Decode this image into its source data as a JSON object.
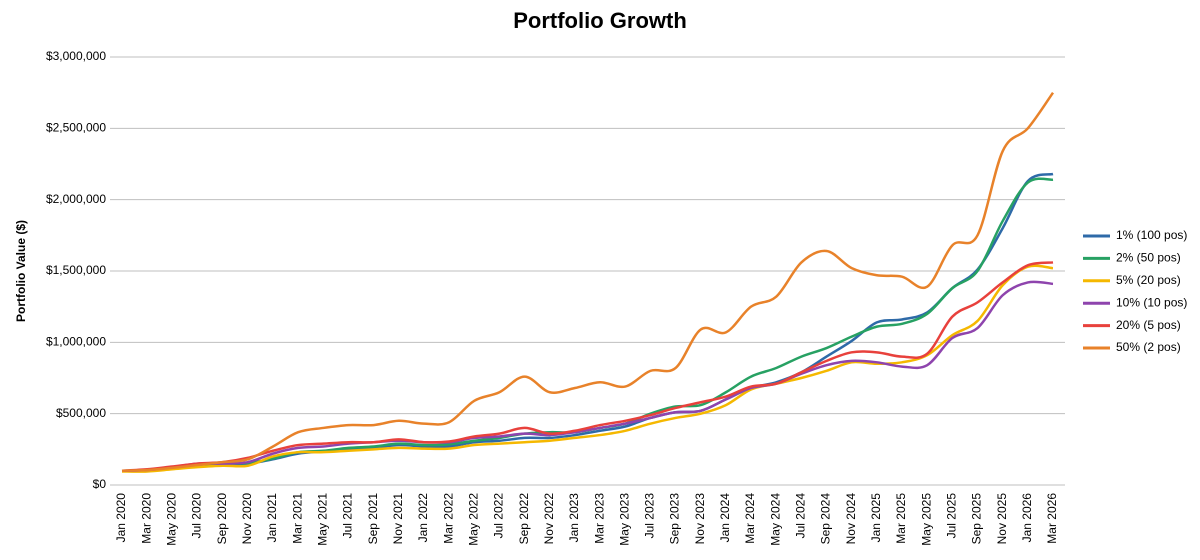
{
  "chart_data": {
    "type": "line",
    "title": "Portfolio Growth",
    "y_label": "Portfolio Value ($)",
    "categories": [
      "Jan 2020",
      "Mar 2020",
      "May 2020",
      "Jul 2020",
      "Sep 2020",
      "Nov 2020",
      "Jan 2021",
      "Mar 2021",
      "May 2021",
      "Jul 2021",
      "Sep 2021",
      "Nov 2021",
      "Jan 2022",
      "Mar 2022",
      "May 2022",
      "Jul 2022",
      "Sep 2022",
      "Nov 2022",
      "Jan 2023",
      "Mar 2023",
      "May 2023",
      "Jul 2023",
      "Sep 2023",
      "Nov 2023",
      "Jan 2024",
      "Mar 2024",
      "May 2024",
      "Jul 2024",
      "Sep 2024",
      "Nov 2024",
      "Jan 2025",
      "Mar 2025",
      "May 2025",
      "Jul 2025",
      "Sep 2025",
      "Nov 2025",
      "Jan 2026",
      "Mar 2026"
    ],
    "ylim": [
      0,
      3000000
    ],
    "yticks": [
      {
        "value": 0,
        "label": "$0"
      },
      {
        "value": 500000,
        "label": "$500,000"
      },
      {
        "value": 1000000,
        "label": "$1,000,000"
      },
      {
        "value": 1500000,
        "label": "$1,500,000"
      },
      {
        "value": 2000000,
        "label": "$2,000,000"
      },
      {
        "value": 2500000,
        "label": "$2,500,000"
      },
      {
        "value": 3000000,
        "label": "$3,000,000"
      }
    ],
    "grid": true,
    "legend": "right",
    "series": [
      {
        "name": "1% (100 pos)",
        "color": "#2e6aa8",
        "values": [
          100000,
          100000,
          115000,
          130000,
          145000,
          150000,
          180000,
          220000,
          235000,
          250000,
          260000,
          280000,
          270000,
          270000,
          300000,
          310000,
          330000,
          330000,
          350000,
          380000,
          410000,
          470000,
          510000,
          520000,
          600000,
          680000,
          720000,
          790000,
          900000,
          1010000,
          1140000,
          1160000,
          1210000,
          1380000,
          1510000,
          1800000,
          2130000,
          2180000
        ]
      },
      {
        "name": "2% (50 pos)",
        "color": "#27a163",
        "values": [
          100000,
          100000,
          115000,
          130000,
          145000,
          155000,
          185000,
          230000,
          240000,
          260000,
          270000,
          290000,
          280000,
          285000,
          310000,
          330000,
          360000,
          370000,
          370000,
          400000,
          430000,
          500000,
          550000,
          560000,
          650000,
          760000,
          820000,
          900000,
          960000,
          1040000,
          1110000,
          1130000,
          1200000,
          1380000,
          1500000,
          1850000,
          2120000,
          2140000
        ]
      },
      {
        "name": "5% (20 pos)",
        "color": "#f5b800",
        "values": [
          95000,
          95000,
          110000,
          125000,
          135000,
          135000,
          200000,
          230000,
          230000,
          240000,
          250000,
          260000,
          255000,
          255000,
          280000,
          290000,
          300000,
          310000,
          330000,
          350000,
          380000,
          430000,
          470000,
          500000,
          560000,
          670000,
          710000,
          750000,
          800000,
          860000,
          850000,
          860000,
          910000,
          1050000,
          1150000,
          1400000,
          1530000,
          1520000
        ]
      },
      {
        "name": "10% (10 pos)",
        "color": "#8e44ad",
        "values": [
          100000,
          105000,
          125000,
          150000,
          150000,
          160000,
          220000,
          260000,
          270000,
          290000,
          300000,
          310000,
          300000,
          300000,
          330000,
          340000,
          360000,
          350000,
          370000,
          400000,
          430000,
          470000,
          510000,
          520000,
          600000,
          680000,
          710000,
          780000,
          840000,
          870000,
          860000,
          830000,
          840000,
          1030000,
          1100000,
          1330000,
          1420000,
          1410000
        ]
      },
      {
        "name": "20% (5 pos)",
        "color": "#e8413c",
        "values": [
          100000,
          110000,
          130000,
          150000,
          160000,
          190000,
          240000,
          280000,
          290000,
          300000,
          300000,
          320000,
          300000,
          305000,
          340000,
          360000,
          400000,
          360000,
          380000,
          420000,
          450000,
          490000,
          540000,
          580000,
          620000,
          690000,
          710000,
          790000,
          870000,
          930000,
          930000,
          900000,
          920000,
          1180000,
          1280000,
          1420000,
          1540000,
          1560000
        ]
      },
      {
        "name": "50% (2 pos)",
        "color": "#e8822a",
        "values": [
          100000,
          105000,
          120000,
          140000,
          160000,
          180000,
          270000,
          370000,
          400000,
          420000,
          420000,
          450000,
          430000,
          440000,
          590000,
          650000,
          760000,
          650000,
          680000,
          720000,
          690000,
          800000,
          820000,
          1090000,
          1070000,
          1250000,
          1320000,
          1560000,
          1640000,
          1520000,
          1470000,
          1460000,
          1390000,
          1680000,
          1750000,
          2340000,
          2500000,
          2750000
        ]
      }
    ]
  }
}
